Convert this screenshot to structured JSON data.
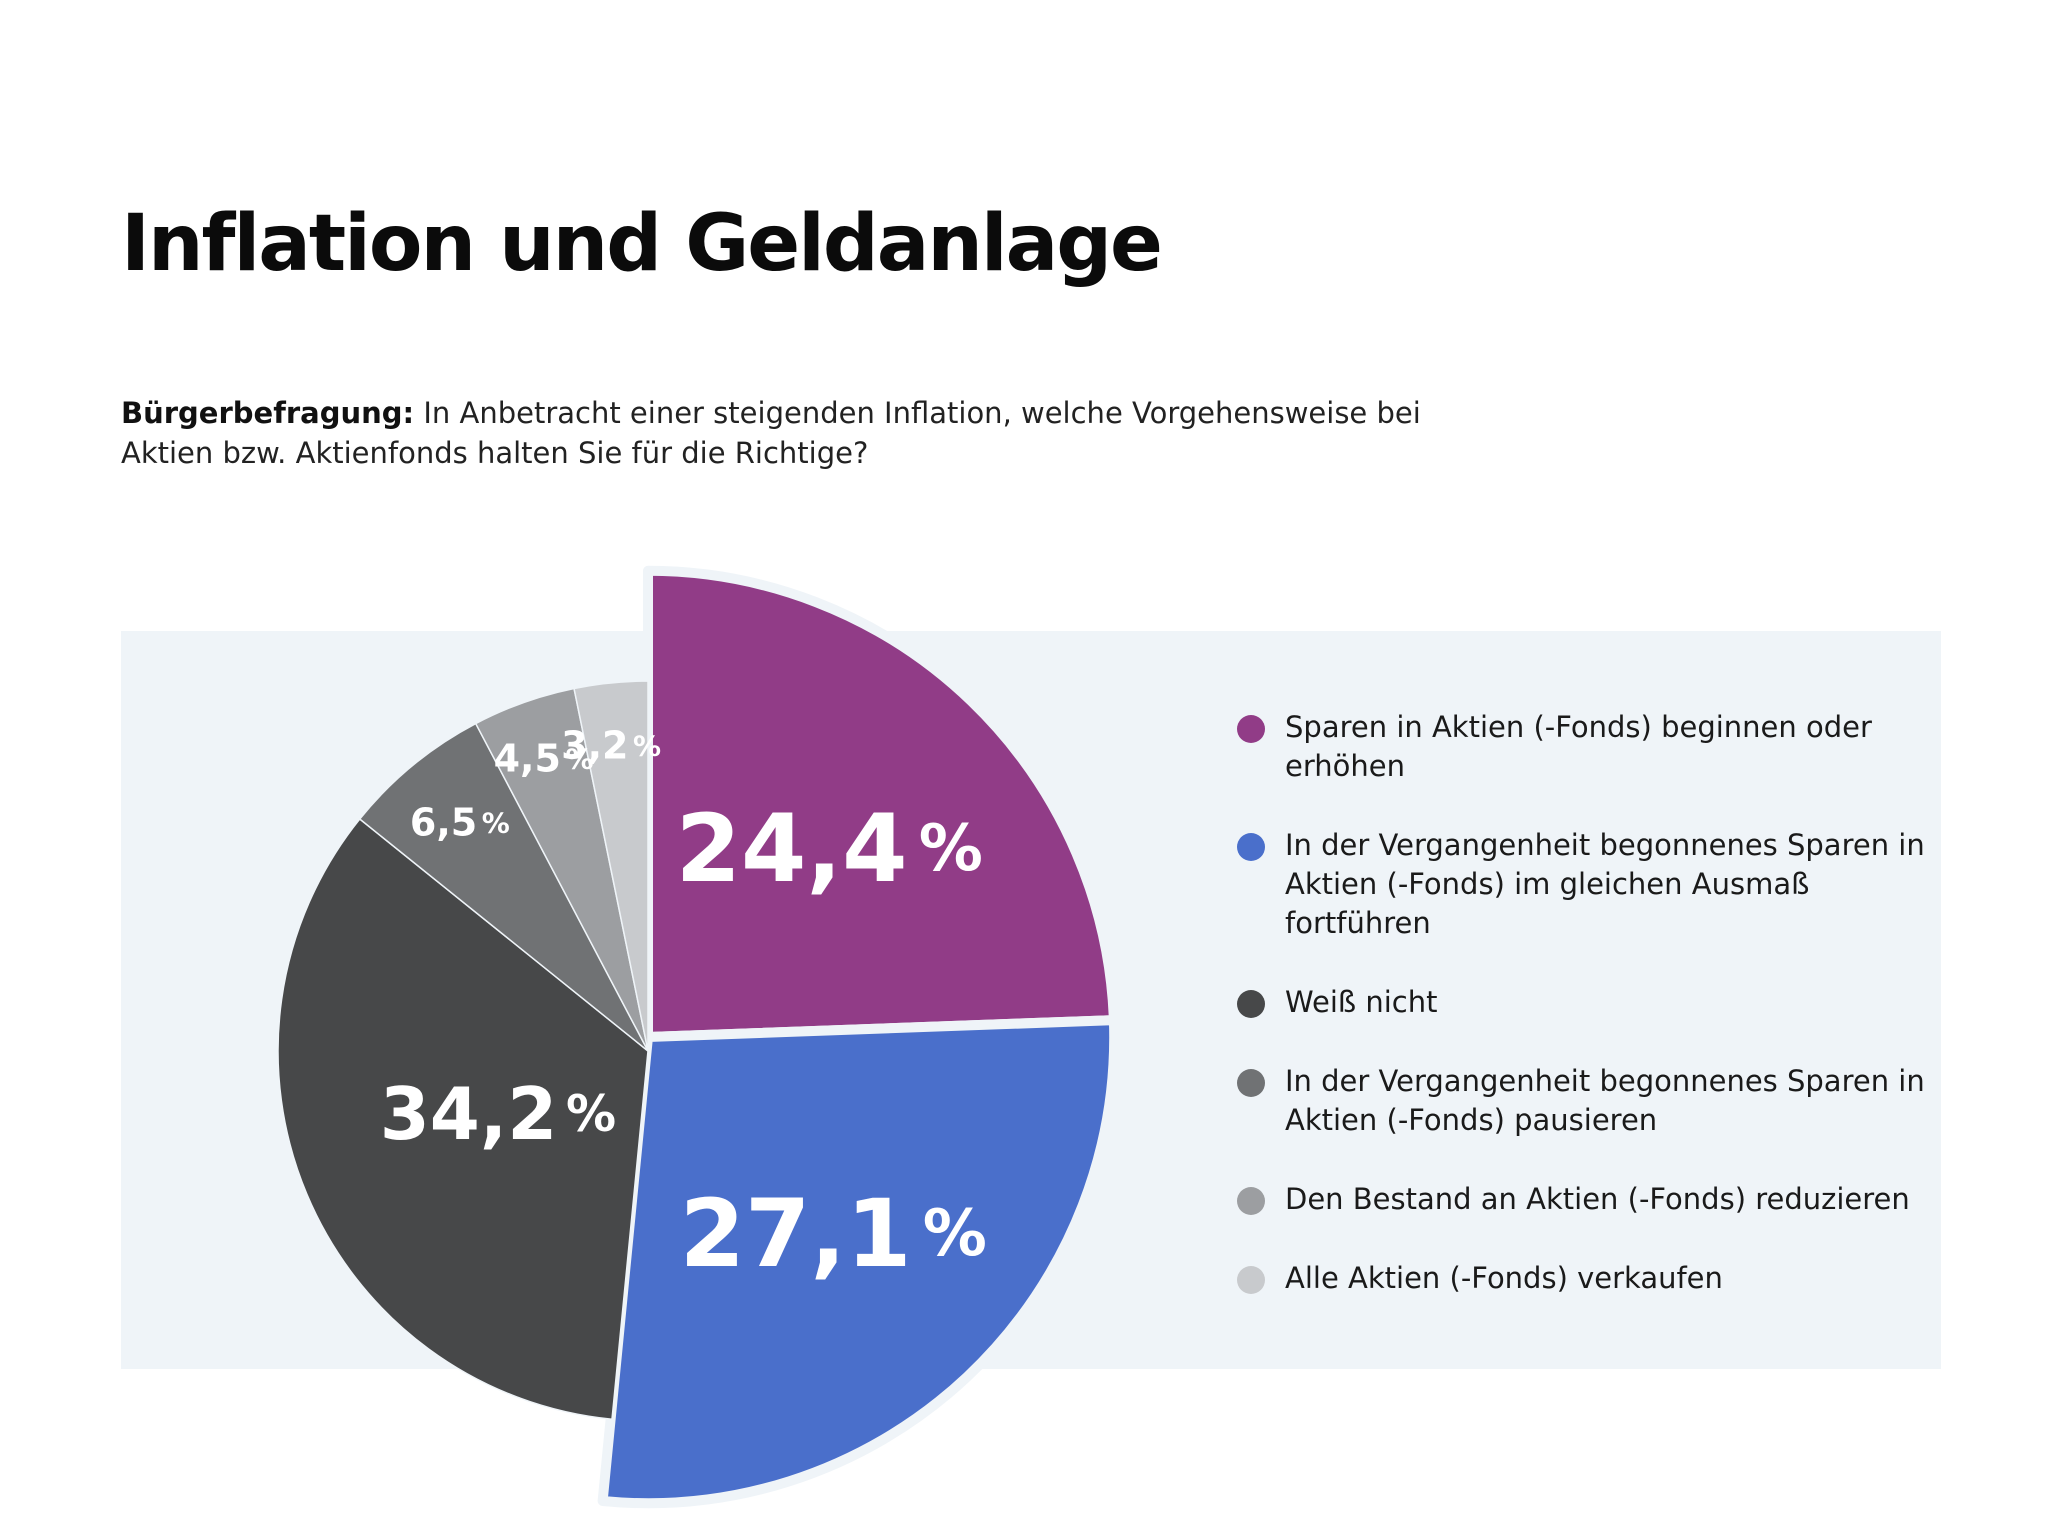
{
  "page": {
    "title": "Inflation und Geldanlage",
    "question_lead": "Bürgerbefragung:",
    "question_text": " In Anbetracht einer steigenden Inflation, welche Vorgehensweise bei Aktien bzw. Aktienfonds halten Sie für die Richtige?"
  },
  "chart_data": {
    "type": "pie",
    "title": "Inflation und Geldanlage",
    "subtitle": "Bürgerbefragung: In Anbetracht einer steigenden Inflation, welche Vorgehensweise bei Aktien bzw. Aktienfonds halten Sie für die Richtige?",
    "unit": "%",
    "legend_position": "right",
    "slices": [
      {
        "label": "Sparen in Aktien (-Fonds) beginnen oder erhöhen",
        "value": 24.4,
        "value_label": "24,4",
        "color": "#913c87",
        "exploded": true
      },
      {
        "label": "In der Vergangenheit begonnenes Sparen in Aktien (-Fonds) im gleichen Ausmaß fortführen",
        "value": 27.1,
        "value_label": "27,1",
        "color": "#4a6fcb",
        "exploded": true
      },
      {
        "label": "Weiß nicht",
        "value": 34.2,
        "value_label": "34,2",
        "color": "#474849",
        "exploded": false
      },
      {
        "label": "In der Vergangenheit begonnenes Sparen in Aktien (-Fonds) pausieren",
        "value": 6.5,
        "value_label": "6,5",
        "color": "#707274",
        "exploded": false
      },
      {
        "label": "Den Bestand an Aktien (-Fonds) reduzieren",
        "value": 4.5,
        "value_label": "4,5",
        "color": "#9c9ea1",
        "exploded": false
      },
      {
        "label": "Alle Aktien (-Fonds) verkaufen",
        "value": 3.2,
        "value_label": "3,2",
        "color": "#c8cacd",
        "exploded": false
      }
    ]
  },
  "legend": {
    "items": [
      {
        "label": "Sparen in Aktien (-Fonds) beginnen oder erhöhen",
        "color": "#913c87"
      },
      {
        "label": "In der Vergangenheit begonnenes Sparen in Aktien (-Fonds) im gleichen Ausmaß fortführen",
        "color": "#4a6fcb"
      },
      {
        "label": "Weiß nicht",
        "color": "#474849"
      },
      {
        "label": "In der Vergangenheit begonnenes Sparen in Aktien (-Fonds) pausieren",
        "color": "#707274"
      },
      {
        "label": "Den Bestand an Aktien (-Fonds) reduzieren",
        "color": "#9c9ea1"
      },
      {
        "label": "Alle Aktien (-Fonds) verkaufen",
        "color": "#c8cacd"
      }
    ]
  }
}
